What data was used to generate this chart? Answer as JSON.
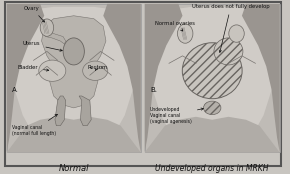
{
  "fig_width": 2.9,
  "fig_height": 1.74,
  "dpi": 100,
  "border_color": "#555555",
  "title_left": "Normal",
  "title_right": "Undeveloped organs in MRKH",
  "label_A": "A.",
  "label_B": "B.",
  "outer_bg": "#c8c5c0",
  "panel_bg_left": "#ccc8c3",
  "panel_bg_right": "#ccc8c3",
  "font_size_title": 6.0,
  "font_size_label": 3.8,
  "font_size_AB": 5.0,
  "text_color": "#111111",
  "tissue_dark": "#8a8680",
  "tissue_mid": "#a8a49e",
  "tissue_light": "#c8c4be",
  "tissue_lighter": "#d8d4ce",
  "hatch_color": "#b0b0b0"
}
